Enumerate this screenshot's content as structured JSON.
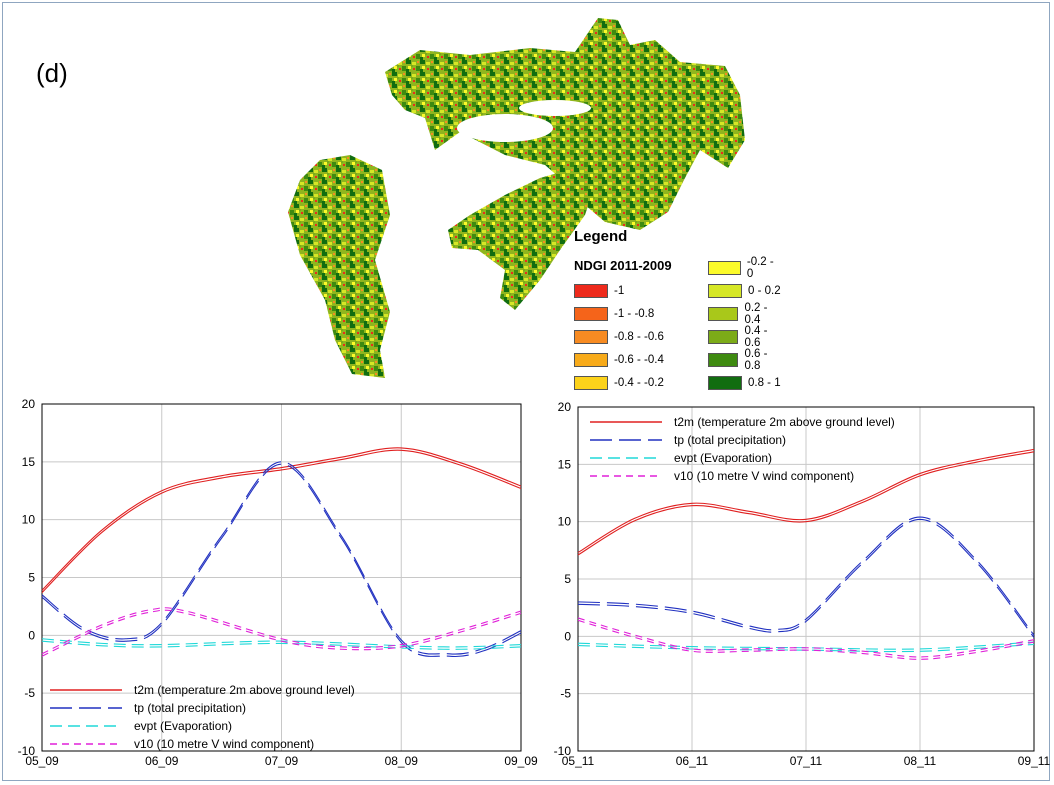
{
  "panel_label": "(d)",
  "map": {
    "legend_title": "Legend",
    "legend_subtitle": "NDGI 2011-2009",
    "classes": [
      {
        "label": "-1",
        "color": "#ee2a1c"
      },
      {
        "label": "-1 - -0.8",
        "color": "#f5641a"
      },
      {
        "label": "-0.8 - -0.6",
        "color": "#f78b22"
      },
      {
        "label": "-0.6 - -0.4",
        "color": "#f8ab1a"
      },
      {
        "label": "-0.4 - -0.2",
        "color": "#fcd21a"
      },
      {
        "label": "-0.2 - 0",
        "color": "#fbfa2a"
      },
      {
        "label": "0 - 0.2",
        "color": "#d6e726"
      },
      {
        "label": "0.2 - 0.4",
        "color": "#a9c81a"
      },
      {
        "label": "0.4 - 0.6",
        "color": "#7cab18"
      },
      {
        "label": "0.6 - 0.8",
        "color": "#3e8a10"
      },
      {
        "label": "0.8 - 1",
        "color": "#116d10"
      }
    ]
  },
  "chart_data": [
    {
      "type": "line",
      "title": "",
      "xlabel": "",
      "ylabel": "",
      "categories": [
        "05_09",
        "06_09",
        "07_09",
        "08_09",
        "09_09"
      ],
      "ylim": [
        -10,
        20
      ],
      "yticks": [
        -10,
        -5,
        0,
        5,
        10,
        15,
        20
      ],
      "grid": true,
      "legend_position": "bottom-left",
      "series": [
        {
          "name": "t2m (temperature 2m above ground level)",
          "color": "#e02020",
          "dash": "solid",
          "points": [
            [
              0,
              3.8
            ],
            [
              0.5,
              9.0
            ],
            [
              1,
              12.4
            ],
            [
              1.5,
              13.7
            ],
            [
              2,
              14.4
            ],
            [
              2.5,
              15.3
            ],
            [
              3,
              16.1
            ],
            [
              3.5,
              14.8
            ],
            [
              4,
              12.8
            ]
          ]
        },
        {
          "name": "tp (total precipitation)",
          "color": "#2030c0",
          "dash": "long",
          "points": [
            [
              0,
              3.4
            ],
            [
              0.35,
              0.5
            ],
            [
              0.7,
              -0.4
            ],
            [
              1,
              1.0
            ],
            [
              1.5,
              8.5
            ],
            [
              2,
              14.9
            ],
            [
              2.5,
              8.5
            ],
            [
              3,
              -0.5
            ],
            [
              3.4,
              -1.7
            ],
            [
              3.7,
              -1.2
            ],
            [
              4,
              0.3
            ]
          ]
        },
        {
          "name": "evpt (Evaporation)",
          "color": "#20d8d8",
          "dash": "medium",
          "points": [
            [
              0,
              -0.4
            ],
            [
              0.5,
              -0.8
            ],
            [
              1,
              -0.9
            ],
            [
              2,
              -0.6
            ],
            [
              3,
              -1.0
            ],
            [
              3.5,
              -1.1
            ],
            [
              4,
              -0.9
            ]
          ]
        },
        {
          "name": "v10 (10 metre V wind component)",
          "color": "#e020d8",
          "dash": "short",
          "points": [
            [
              0,
              -1.7
            ],
            [
              0.5,
              0.8
            ],
            [
              0.9,
              2.1
            ],
            [
              1.2,
              2.0
            ],
            [
              2,
              -0.4
            ],
            [
              2.5,
              -1.1
            ],
            [
              3,
              -0.9
            ],
            [
              3.5,
              0.4
            ],
            [
              4,
              2.0
            ]
          ]
        }
      ]
    },
    {
      "type": "line",
      "title": "",
      "xlabel": "",
      "ylabel": "",
      "categories": [
        "05_11",
        "06_11",
        "07_11",
        "08_11",
        "09_11"
      ],
      "ylim": [
        -10,
        20
      ],
      "yticks": [
        -10,
        -5,
        0,
        5,
        10,
        15,
        20
      ],
      "grid": true,
      "legend_position": "top-left",
      "series": [
        {
          "name": "t2m (temperature 2m above ground level)",
          "color": "#e02020",
          "dash": "solid",
          "points": [
            [
              0,
              7.2
            ],
            [
              0.5,
              10.2
            ],
            [
              1,
              11.5
            ],
            [
              1.5,
              10.8
            ],
            [
              2,
              10.1
            ],
            [
              2.5,
              11.8
            ],
            [
              3,
              14.1
            ],
            [
              3.5,
              15.3
            ],
            [
              4,
              16.2
            ]
          ]
        },
        {
          "name": "tp (total precipitation)",
          "color": "#2030c0",
          "dash": "long",
          "points": [
            [
              0,
              2.9
            ],
            [
              0.5,
              2.7
            ],
            [
              1,
              2.1
            ],
            [
              1.5,
              0.8
            ],
            [
              1.75,
              0.5
            ],
            [
              2,
              1.4
            ],
            [
              2.5,
              6.5
            ],
            [
              3,
              10.3
            ],
            [
              3.5,
              6.5
            ],
            [
              4,
              0.0
            ]
          ]
        },
        {
          "name": "evpt (Evaporation)",
          "color": "#20d8d8",
          "dash": "medium",
          "points": [
            [
              0,
              -0.7
            ],
            [
              1,
              -1.0
            ],
            [
              2,
              -1.1
            ],
            [
              3,
              -1.2
            ],
            [
              4,
              -0.6
            ]
          ]
        },
        {
          "name": "v10 (10 metre V wind component)",
          "color": "#e020d8",
          "dash": "short",
          "points": [
            [
              0,
              1.5
            ],
            [
              0.5,
              0.0
            ],
            [
              1,
              -1.2
            ],
            [
              1.5,
              -1.2
            ],
            [
              2,
              -1.1
            ],
            [
              2.5,
              -1.4
            ],
            [
              3,
              -1.9
            ],
            [
              3.5,
              -1.3
            ],
            [
              4,
              -0.4
            ]
          ]
        }
      ]
    }
  ]
}
